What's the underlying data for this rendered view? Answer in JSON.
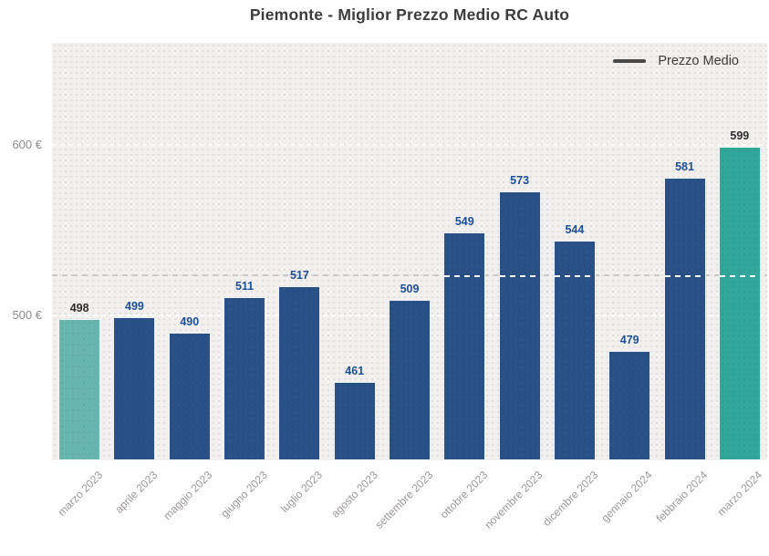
{
  "legend": {
    "label": "Prezzo Medio"
  },
  "y_axis": {
    "ticks": [
      {
        "label": "600 €",
        "value": 600
      },
      {
        "label": "500 €",
        "value": 500
      }
    ]
  },
  "chart_data": {
    "type": "bar",
    "title": "Piemonte - Miglior Prezzo Medio RC Auto",
    "categories": [
      "marzo 2023",
      "aprile 2023",
      "maggio 2023",
      "giugno 2023",
      "luglio 2023",
      "agosto 2023",
      "settembre 2023",
      "ottobre 2023",
      "novembre 2023",
      "dicembre 2023",
      "gennaio 2024",
      "febbraio 2024",
      "marzo 2024"
    ],
    "values": [
      498,
      499,
      490,
      511,
      517,
      461,
      509,
      549,
      573,
      544,
      479,
      581,
      599
    ],
    "xlabel": "",
    "ylabel": "",
    "ylim": [
      415,
      660
    ],
    "average_line": 523.8,
    "grid": "horizontal-dashed",
    "legend_entries": [
      "Prezzo Medio"
    ],
    "legend_position": "top-right",
    "colors": {
      "bar_default": "#2a5187",
      "bar_first": "#66b6ae",
      "bar_last": "#31a69a",
      "value_label_default": "#1d4f96",
      "value_label_accent": "#2d2d2d",
      "plot_background": "#f1f0ee",
      "grid_line": "#ffffff",
      "average_line": "#cbc9c7",
      "axis_text": "#9a9797",
      "title_text": "#3c3c3c"
    }
  }
}
